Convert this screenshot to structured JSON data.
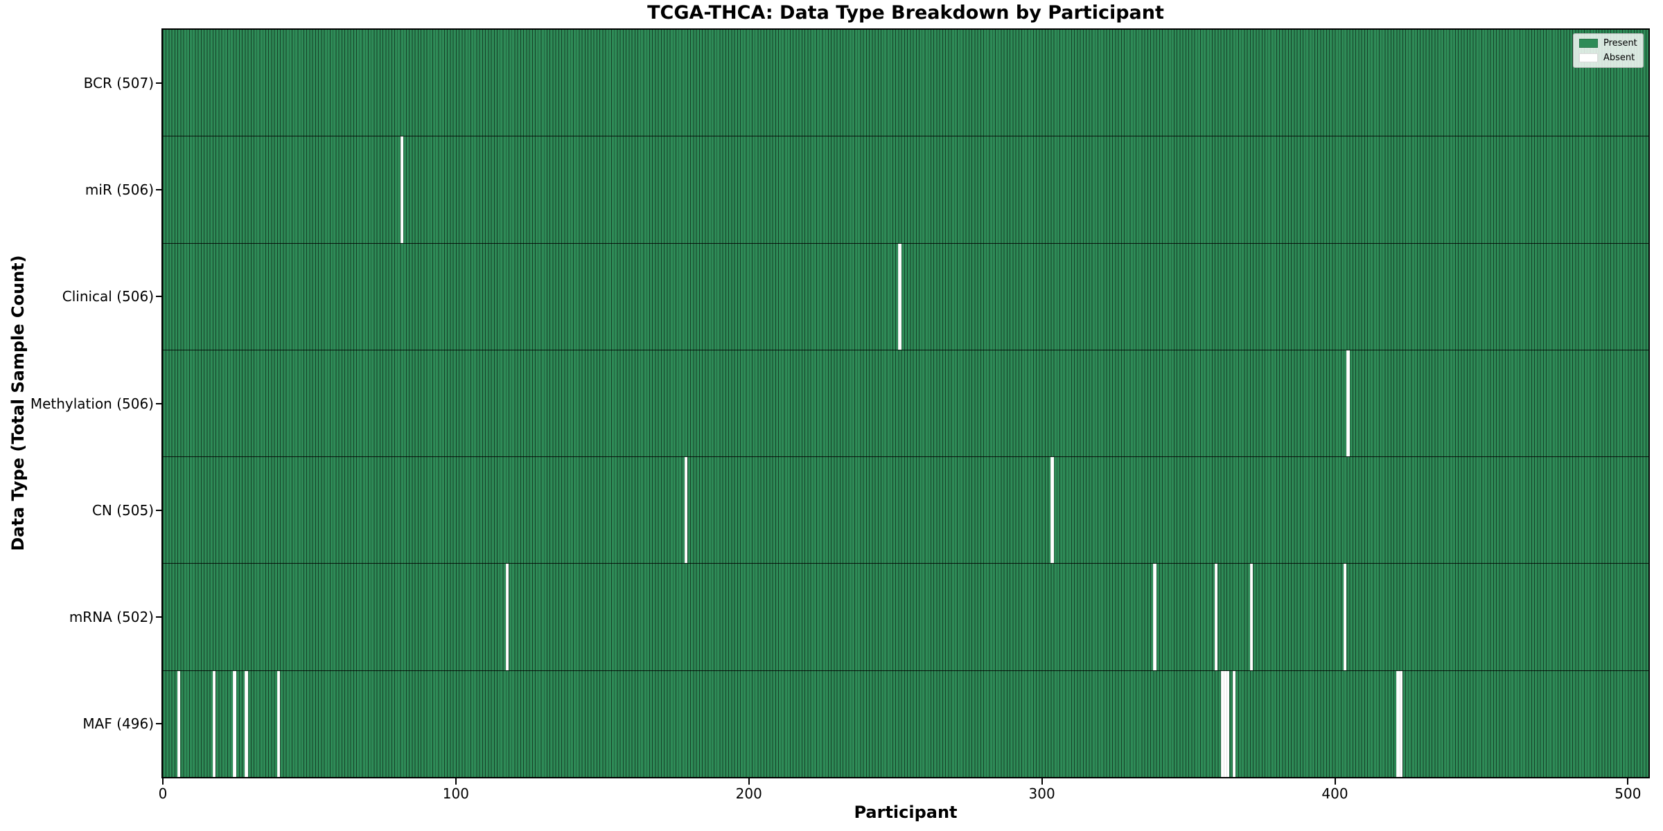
{
  "title": "TCGA-THCA: Data Type Breakdown by Participant",
  "chart_data": {
    "type": "heatmap",
    "title": "TCGA-THCA: Data Type Breakdown by Participant",
    "xlabel": "Participant",
    "ylabel": "Data Type (Total Sample Count)",
    "x_ticks": [
      0,
      100,
      200,
      300,
      400,
      500
    ],
    "x_range": [
      0,
      507
    ],
    "total_participants": 507,
    "grid": false,
    "legend_position": "upper right",
    "legend": [
      {
        "label": "Present",
        "color": "#2e8b57"
      },
      {
        "label": "Absent",
        "color": "#ffffff"
      }
    ],
    "colors": {
      "present": "#2e8b57",
      "absent": "#ffffff",
      "bar_edge": "#17402a"
    },
    "rows": [
      {
        "label": "BCR (507)",
        "data_type": "BCR",
        "present_count": 507,
        "absent_indices": []
      },
      {
        "label": "miR (506)",
        "data_type": "miR",
        "present_count": 506,
        "absent_indices": [
          81
        ]
      },
      {
        "label": "Clinical (506)",
        "data_type": "Clinical",
        "present_count": 506,
        "absent_indices": [
          251
        ]
      },
      {
        "label": "Methylation (506)",
        "data_type": "Methylation",
        "present_count": 506,
        "absent_indices": [
          404
        ]
      },
      {
        "label": "CN (505)",
        "data_type": "CN",
        "present_count": 505,
        "absent_indices": [
          178,
          303
        ]
      },
      {
        "label": "mRNA (502)",
        "data_type": "mRNA",
        "present_count": 502,
        "absent_indices": [
          117,
          338,
          359,
          371,
          403
        ]
      },
      {
        "label": "MAF (496)",
        "data_type": "MAF",
        "present_count": 496,
        "absent_indices": [
          5,
          17,
          24,
          28,
          39,
          361,
          362,
          363,
          365,
          421,
          422
        ]
      }
    ]
  }
}
